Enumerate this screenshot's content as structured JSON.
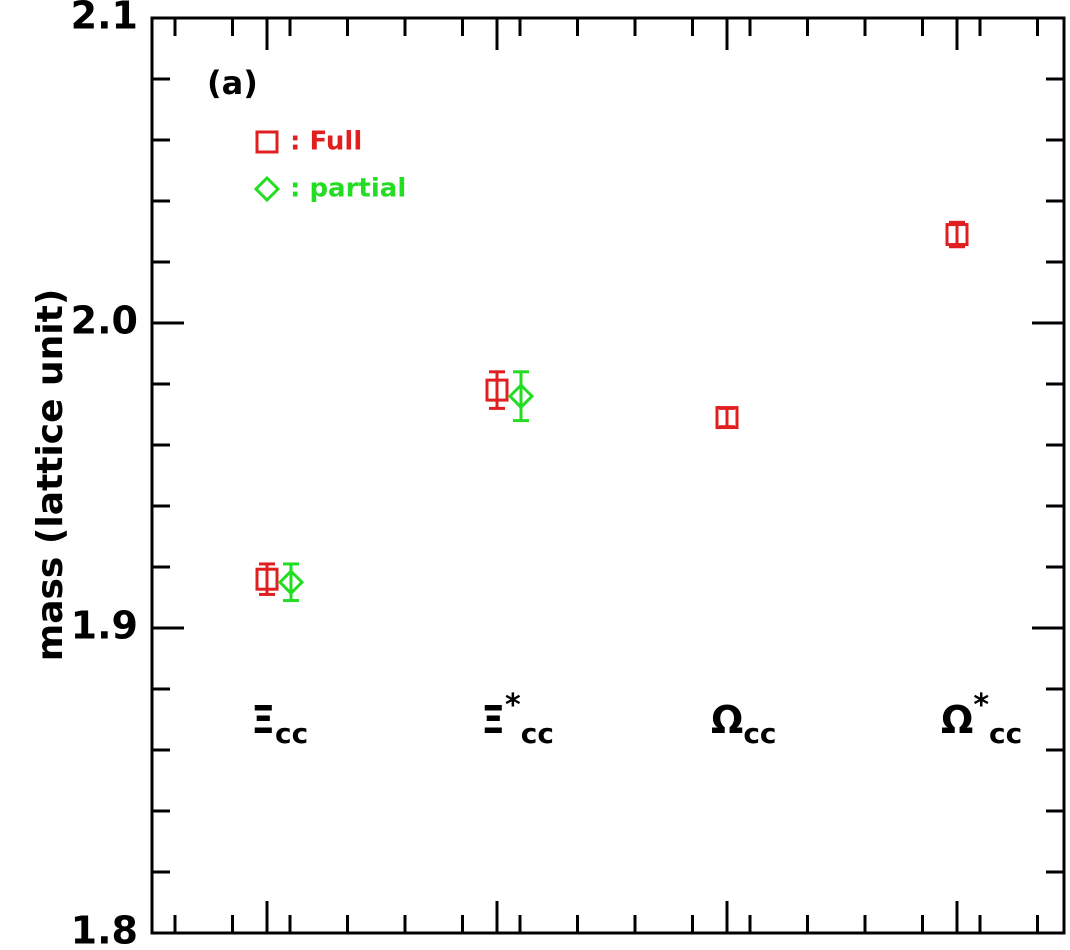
{
  "chart_data": {
    "type": "scatter",
    "ylabel": "mass (lattice unit)",
    "ylim": [
      1.8,
      2.1
    ],
    "yticks": [
      "1.8",
      "1.9",
      "2.0",
      "2.1"
    ],
    "panel_label": "(a)",
    "categories": [
      {
        "base": "Ξ",
        "sup": "",
        "sub": "cc"
      },
      {
        "base": "Ξ",
        "sup": "*",
        "sub": "cc"
      },
      {
        "base": "Ω",
        "sup": "",
        "sub": "cc"
      },
      {
        "base": "Ω",
        "sup": "*",
        "sub": "cc"
      }
    ],
    "series": [
      {
        "name": "Full",
        "legend_label": ": Full",
        "marker": "square",
        "color": "#e02020",
        "points": [
          {
            "category_index": 0,
            "y": 1.916,
            "err": 0.005
          },
          {
            "category_index": 1,
            "y": 1.978,
            "err": 0.006
          },
          {
            "category_index": 2,
            "y": 1.969,
            "err": 0.003
          },
          {
            "category_index": 3,
            "y": 2.029,
            "err": 0.004
          }
        ]
      },
      {
        "name": "partial",
        "legend_label": ": partial",
        "marker": "diamond",
        "color": "#22dd22",
        "points": [
          {
            "category_index": 0,
            "y": 1.915,
            "err": 0.006
          },
          {
            "category_index": 1,
            "y": 1.976,
            "err": 0.008
          }
        ]
      }
    ],
    "grid": false,
    "legend_position": "top-left"
  }
}
